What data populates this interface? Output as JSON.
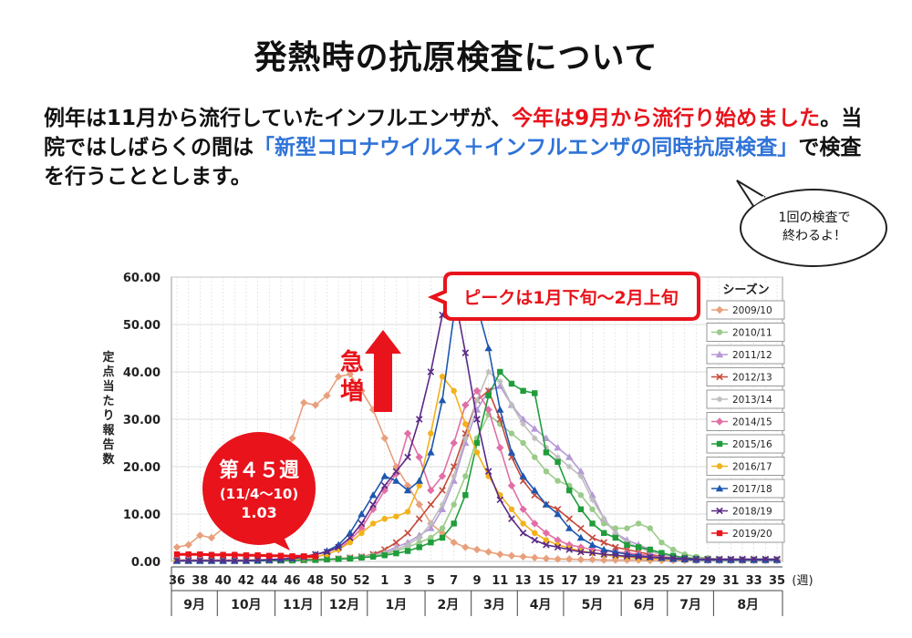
{
  "header": {
    "title": "発熱時の抗原検査について",
    "lead_part1": "例年は11月から流行していたインフルエンザが、",
    "lead_part2_red": "今年は9月から流行り始めました",
    "lead_part3": "。当院ではしばらくの間は",
    "lead_part4_blue": "「新型コロナウイルス＋インフルエンザの同時抗原検査」",
    "lead_part5": "で検査を行うこととします。"
  },
  "speech_bubble": {
    "line1": "1回の検査で",
    "line2": "終わるよ！"
  },
  "colors": {
    "accent_red": "#e8131b",
    "accent_blue": "#2f73d8"
  },
  "chart_data": {
    "type": "line",
    "ylabel": "定点当たり報告数",
    "ylim": [
      0,
      60
    ],
    "yticks": [
      "0.00",
      "10.00",
      "20.00",
      "30.00",
      "40.00",
      "50.00",
      "60.00"
    ],
    "week_unit": "(週)",
    "week_labels": [
      "36",
      "38",
      "40",
      "42",
      "44",
      "46",
      "48",
      "50",
      "52",
      "1",
      "3",
      "5",
      "7",
      "9",
      "11",
      "13",
      "15",
      "17",
      "19",
      "21",
      "23",
      "25",
      "27",
      "29",
      "31",
      "33",
      "35"
    ],
    "month_labels": [
      "9月",
      "10月",
      "11月",
      "12月",
      "1月",
      "2月",
      "3月",
      "4月",
      "5月",
      "6月",
      "7月",
      "8月"
    ],
    "legend_title": "シーズン",
    "legend_placement": "right",
    "callout_peak": "ピークは1月下旬～2月上旬",
    "callout_surge": "急増",
    "callout_week": {
      "line1": "第４５週",
      "line2": "(11/4～10)",
      "line3": "1.03"
    },
    "series": [
      {
        "name": "2009/10",
        "color": "#e8a07c",
        "marker": "diamond",
        "values": [
          3.0,
          3.5,
          5.5,
          5.0,
          7.0,
          8.0,
          10.0,
          13.0,
          17.0,
          21.0,
          26.0,
          33.5,
          33.0,
          35.0,
          39.0,
          39.5,
          36.0,
          32.0,
          26.0,
          20.0,
          16.0,
          12.0,
          8.0,
          6.0,
          4.0,
          3.0,
          2.5,
          2.0,
          1.5,
          1.2,
          1.0,
          0.8,
          0.6,
          0.5,
          0.5,
          0.4,
          0.4,
          0.3,
          0.3,
          0.3,
          0.3,
          0.2,
          0.2,
          0.2,
          0.2,
          0.2,
          0.2,
          0.2,
          0.2,
          0.2,
          0.2,
          0.2,
          0.2
        ]
      },
      {
        "name": "2010/11",
        "color": "#9acb8a",
        "marker": "circle",
        "values": [
          0.3,
          0.3,
          0.3,
          0.3,
          0.3,
          0.3,
          0.3,
          0.3,
          0.3,
          0.3,
          0.4,
          0.4,
          0.5,
          0.5,
          0.6,
          0.7,
          0.9,
          1.2,
          1.6,
          2.2,
          3.0,
          4.0,
          5.0,
          7.0,
          12.0,
          18.0,
          26.0,
          31.0,
          29.0,
          27.0,
          25.0,
          22.0,
          19.0,
          17.0,
          16.0,
          14.0,
          11.0,
          8.0,
          7.0,
          7.0,
          8.0,
          7.0,
          4.0,
          2.5,
          1.5,
          1.0,
          0.7,
          0.5,
          0.4,
          0.3,
          0.3,
          0.3,
          0.3
        ]
      },
      {
        "name": "2011/12",
        "color": "#b59ad6",
        "marker": "triangle",
        "values": [
          0.2,
          0.2,
          0.2,
          0.2,
          0.2,
          0.2,
          0.2,
          0.2,
          0.2,
          0.2,
          0.3,
          0.3,
          0.4,
          0.5,
          0.6,
          0.8,
          1.0,
          1.4,
          2.0,
          3.0,
          4.0,
          5.5,
          7.0,
          11.0,
          17.0,
          25.0,
          32.0,
          36.0,
          37.0,
          33.0,
          30.0,
          28.0,
          26.0,
          24.0,
          22.0,
          19.0,
          14.0,
          9.0,
          6.0,
          4.5,
          3.5,
          2.5,
          1.5,
          1.0,
          0.7,
          0.5,
          0.4,
          0.3,
          0.3,
          0.3,
          0.3,
          0.3,
          0.3
        ]
      },
      {
        "name": "2012/13",
        "color": "#c64a3a",
        "marker": "x",
        "values": [
          0.2,
          0.2,
          0.2,
          0.2,
          0.2,
          0.2,
          0.2,
          0.2,
          0.2,
          0.2,
          0.3,
          0.3,
          0.4,
          0.5,
          0.6,
          0.8,
          1.0,
          1.5,
          2.5,
          4.0,
          6.0,
          9.0,
          12.0,
          15.0,
          20.0,
          27.0,
          34.0,
          36.0,
          30.0,
          22.0,
          17.0,
          14.0,
          12.0,
          11.0,
          9.0,
          7.0,
          5.0,
          4.0,
          3.0,
          2.5,
          2.0,
          1.5,
          1.0,
          0.7,
          0.5,
          0.4,
          0.3,
          0.3,
          0.3,
          0.3,
          0.3,
          0.3,
          0.3
        ]
      },
      {
        "name": "2013/14",
        "color": "#bdbdbd",
        "marker": "star",
        "values": [
          0.2,
          0.2,
          0.2,
          0.2,
          0.2,
          0.2,
          0.2,
          0.2,
          0.2,
          0.2,
          0.3,
          0.3,
          0.4,
          0.5,
          0.6,
          0.8,
          1.0,
          1.3,
          1.8,
          2.5,
          3.5,
          5.0,
          8.0,
          12.0,
          18.0,
          26.0,
          34.0,
          40.0,
          38.0,
          33.0,
          29.0,
          26.0,
          24.0,
          22.0,
          20.0,
          18.0,
          13.0,
          9.0,
          6.0,
          4.0,
          3.0,
          2.0,
          1.5,
          1.0,
          0.7,
          0.5,
          0.4,
          0.3,
          0.3,
          0.3,
          0.3,
          0.3,
          0.3
        ]
      },
      {
        "name": "2014/15",
        "color": "#e16fa5",
        "marker": "diamond",
        "values": [
          0.3,
          0.3,
          0.3,
          0.3,
          0.3,
          0.3,
          0.3,
          0.3,
          0.3,
          0.4,
          0.5,
          0.7,
          1.0,
          1.5,
          2.5,
          4.5,
          7.0,
          11.0,
          15.0,
          18.5,
          27.0,
          22.0,
          15.0,
          18.0,
          25.0,
          33.0,
          36.0,
          32.0,
          24.0,
          16.0,
          11.0,
          8.0,
          6.0,
          4.5,
          3.5,
          3.0,
          2.5,
          2.2,
          2.0,
          1.8,
          1.5,
          1.2,
          0.9,
          0.7,
          0.5,
          0.4,
          0.3,
          0.3,
          0.3,
          0.3,
          0.3,
          0.3,
          0.3
        ]
      },
      {
        "name": "2015/16",
        "color": "#1f9d3a",
        "marker": "square",
        "values": [
          0.1,
          0.1,
          0.1,
          0.1,
          0.1,
          0.1,
          0.1,
          0.1,
          0.2,
          0.2,
          0.2,
          0.3,
          0.3,
          0.4,
          0.5,
          0.6,
          0.8,
          1.0,
          1.3,
          1.7,
          2.2,
          3.0,
          4.0,
          5.0,
          8.0,
          14.0,
          25.0,
          35.0,
          40.0,
          37.5,
          36.0,
          35.5,
          23.0,
          21.0,
          15.0,
          11.0,
          8.0,
          6.0,
          5.0,
          3.5,
          3.0,
          2.5,
          1.8,
          1.2,
          0.8,
          0.6,
          0.4,
          0.3,
          0.3,
          0.3,
          0.3,
          0.3,
          0.3
        ]
      },
      {
        "name": "2016/17",
        "color": "#f2b21a",
        "marker": "circle",
        "values": [
          0.2,
          0.2,
          0.2,
          0.2,
          0.2,
          0.2,
          0.2,
          0.3,
          0.3,
          0.4,
          0.5,
          0.7,
          1.0,
          1.5,
          2.5,
          4.0,
          6.0,
          8.0,
          9.0,
          9.5,
          10.5,
          16.0,
          27.0,
          39.0,
          36.0,
          29.0,
          23.0,
          18.0,
          14.0,
          11.0,
          8.0,
          6.0,
          4.5,
          3.5,
          2.8,
          2.2,
          1.8,
          1.4,
          1.1,
          0.9,
          0.7,
          0.6,
          0.5,
          0.4,
          0.3,
          0.3,
          0.3,
          0.3,
          0.3,
          0.3,
          0.3,
          0.3,
          0.3
        ]
      },
      {
        "name": "2017/18",
        "color": "#1d57b0",
        "marker": "triangle",
        "values": [
          0.1,
          0.1,
          0.1,
          0.1,
          0.1,
          0.1,
          0.1,
          0.2,
          0.3,
          0.4,
          0.6,
          0.9,
          1.4,
          2.2,
          3.5,
          6.0,
          10.0,
          14.0,
          18.0,
          17.0,
          15.0,
          17.0,
          23.0,
          34.0,
          52.0,
          52.5,
          54.0,
          45.0,
          32.0,
          23.0,
          18.0,
          15.0,
          12.0,
          10.0,
          7.0,
          5.0,
          3.5,
          2.5,
          2.0,
          1.5,
          1.2,
          0.9,
          0.7,
          0.5,
          0.4,
          0.3,
          0.3,
          0.3,
          0.3,
          0.3,
          0.3,
          0.3,
          0.3
        ]
      },
      {
        "name": "2018/19",
        "color": "#5a2a86",
        "marker": "x",
        "values": [
          0.2,
          0.2,
          0.2,
          0.2,
          0.2,
          0.2,
          0.2,
          0.3,
          0.4,
          0.5,
          0.7,
          1.0,
          1.5,
          2.0,
          3.0,
          5.0,
          8.0,
          12.0,
          16.0,
          19.0,
          22.0,
          30.0,
          40.0,
          52.0,
          57.0,
          44.0,
          30.0,
          19.0,
          13.0,
          9.0,
          6.0,
          4.5,
          3.5,
          3.0,
          2.5,
          2.0,
          1.8,
          1.5,
          1.3,
          1.1,
          1.0,
          0.9,
          0.8,
          0.7,
          0.6,
          0.5,
          0.5,
          0.5,
          0.5,
          0.5,
          0.5,
          0.5,
          0.5
        ]
      },
      {
        "name": "2019/20",
        "color": "#e8131b",
        "marker": "square",
        "values": [
          1.5,
          1.5,
          1.5,
          1.4,
          1.4,
          1.4,
          1.3,
          1.3,
          1.2,
          1.2,
          1.1,
          1.1,
          1.03
        ]
      }
    ]
  }
}
